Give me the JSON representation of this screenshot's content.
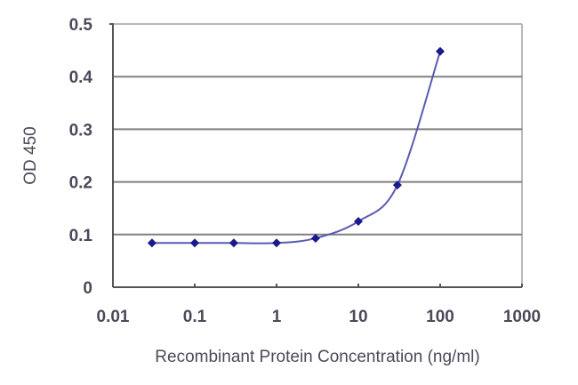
{
  "chart_data": {
    "type": "line",
    "title": "",
    "xlabel": "Recombinant Protein Concentration (ng/ml)",
    "ylabel": "OD 450",
    "xscale": "log",
    "xlim": [
      0.01,
      1000
    ],
    "ylim": [
      0,
      0.5
    ],
    "x_ticks": [
      "0.01",
      "0.1",
      "1",
      "10",
      "100",
      "1000"
    ],
    "y_ticks": [
      "0",
      "0.1",
      "0.2",
      "0.3",
      "0.4",
      "0.5"
    ],
    "grid": "horizontal",
    "legend": null,
    "series": [
      {
        "name": "OD 450",
        "color": "#1a1a8c",
        "marker": "diamond",
        "x": [
          0.03,
          0.1,
          0.3,
          1,
          3,
          10,
          30,
          100
        ],
        "values": [
          0.084,
          0.084,
          0.084,
          0.084,
          0.093,
          0.125,
          0.194,
          0.448
        ]
      }
    ]
  },
  "colors": {
    "series": "#1a1a8c",
    "curve": "#5a5ab4",
    "axis": "#555555",
    "grid": "#808080",
    "frame": "#b8b8b8"
  }
}
